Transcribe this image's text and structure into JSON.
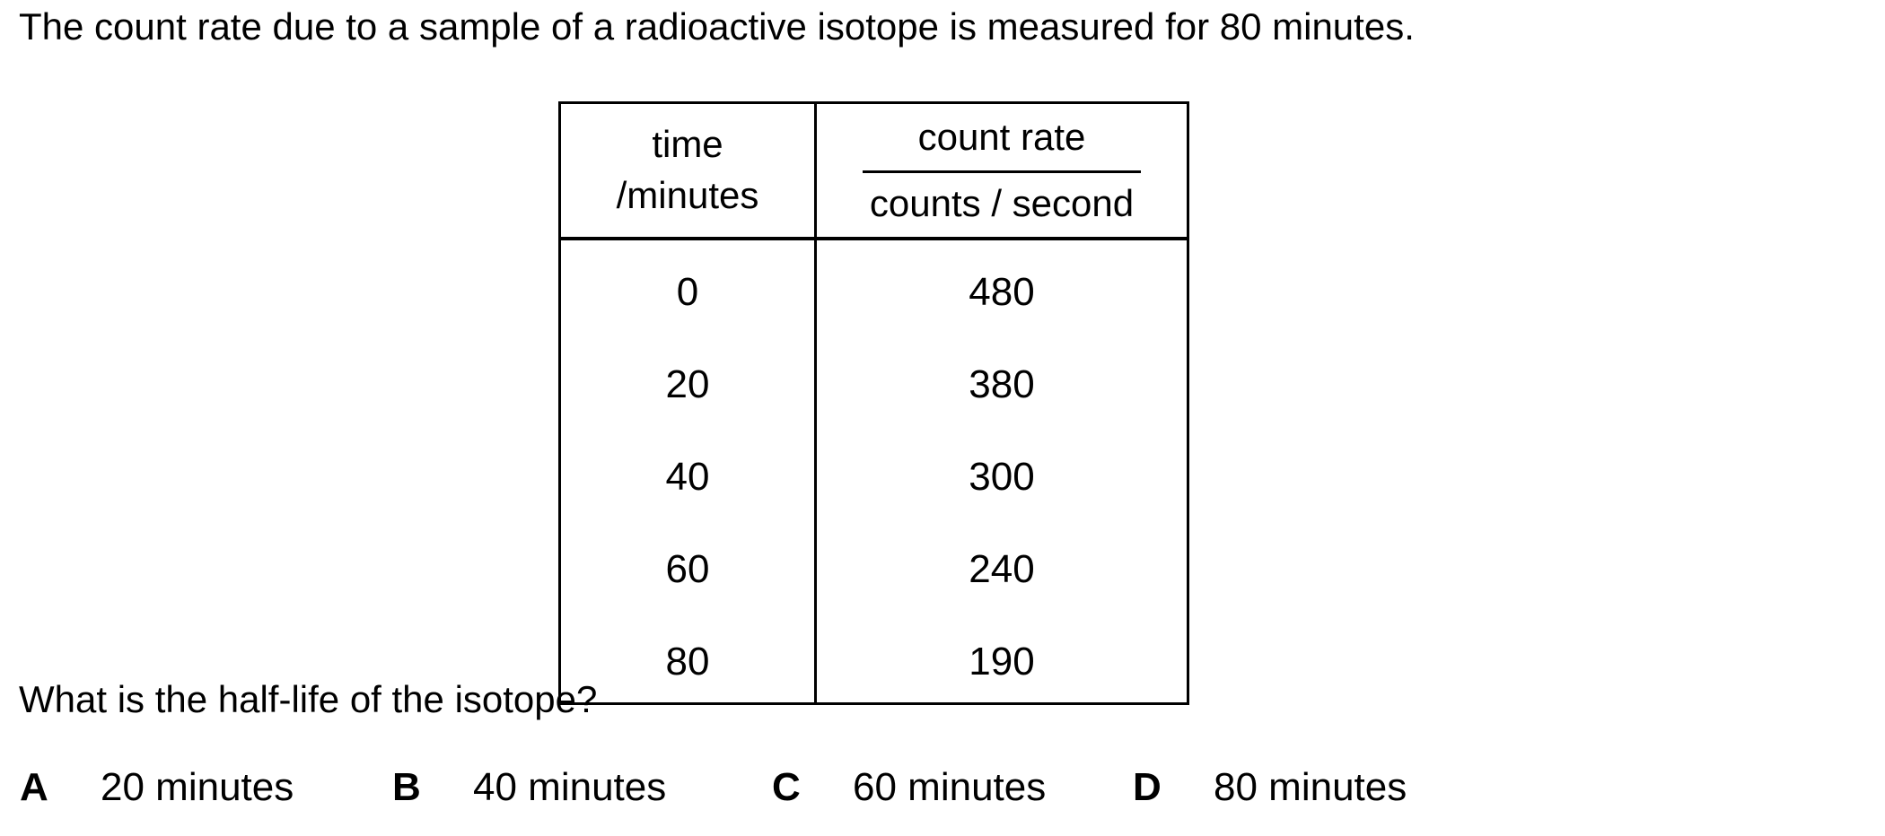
{
  "intro": "The count rate due to a sample of a radioactive isotope is measured for 80 minutes.",
  "question": "What is the half-life of the isotope?",
  "table": {
    "header": {
      "time_line1": "time",
      "time_line2": "/minutes",
      "rate_numerator": "count rate",
      "rate_denominator": "counts / second"
    },
    "rows": [
      {
        "time": "0",
        "count_rate": "480"
      },
      {
        "time": "20",
        "count_rate": "380"
      },
      {
        "time": "40",
        "count_rate": "300"
      },
      {
        "time": "60",
        "count_rate": "240"
      },
      {
        "time": "80",
        "count_rate": "190"
      }
    ]
  },
  "options": [
    {
      "letter": "A",
      "label": "20 minutes"
    },
    {
      "letter": "B",
      "label": "40 minutes"
    },
    {
      "letter": "C",
      "label": "60 minutes"
    },
    {
      "letter": "D",
      "label": "80 minutes"
    }
  ],
  "colors": {
    "text": "#000000",
    "background": "#ffffff"
  }
}
